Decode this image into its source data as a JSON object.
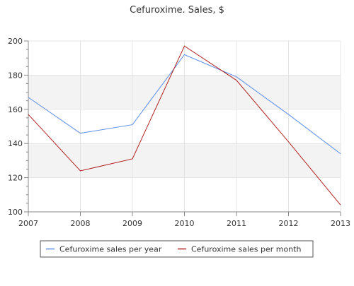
{
  "chart_data": {
    "type": "line",
    "title": "Cefuroxime. Sales, $",
    "xlabel": "",
    "ylabel": "",
    "x": [
      2007,
      2008,
      2009,
      2010,
      2011,
      2012,
      2013
    ],
    "x_tick_labels": [
      "2007",
      "2008",
      "2009",
      "2010",
      "2011",
      "2012",
      "2013"
    ],
    "y_ticks": [
      100,
      120,
      140,
      160,
      180,
      200
    ],
    "y_tick_labels": [
      "100",
      "120",
      "140",
      "160",
      "180",
      "200"
    ],
    "ylim": [
      100,
      200
    ],
    "xlim": [
      2007,
      2013
    ],
    "grid": true,
    "alternating_bands": true,
    "legend_position": "bottom",
    "series": [
      {
        "name": "Cefuroxime sales per year",
        "color": "#5b8ee6",
        "values": [
          167,
          146,
          151,
          192,
          179,
          157,
          134
        ]
      },
      {
        "name": "Cefuroxime sales per month",
        "color": "#b22222",
        "values": [
          157,
          124,
          131,
          197,
          177,
          141,
          104
        ]
      }
    ]
  }
}
